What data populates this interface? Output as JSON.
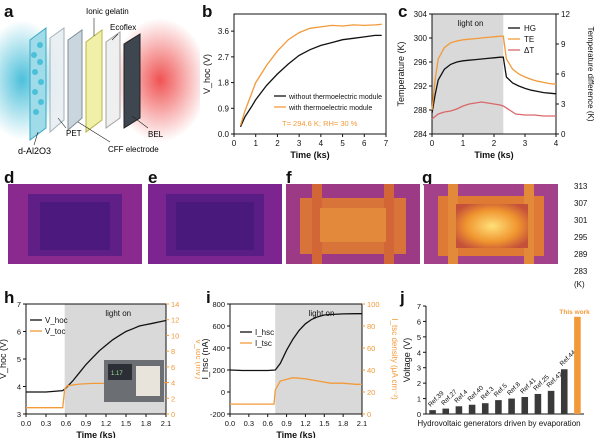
{
  "panel_letters": {
    "a": "a",
    "b": "b",
    "c": "c",
    "d": "d",
    "e": "e",
    "f": "f",
    "g": "g",
    "h": "h",
    "i": "i",
    "j": "j"
  },
  "schematic": {
    "labels": [
      "Ionic gelatin",
      "Ecoflex",
      "BEL",
      "CFF electrode",
      "PET",
      "d-Al2O3"
    ],
    "colors": {
      "hot": "#ef4a4a",
      "cold": "#39b9d6"
    }
  },
  "thermal": {
    "colorbar_ticks": [
      "313",
      "307",
      "301",
      "295",
      "289",
      "283"
    ],
    "colorbar_unit": "(K)"
  },
  "colors": {
    "black": "#111111",
    "orange": "#f29a3a",
    "red": "#d9686a",
    "shade": "#d9d9d9"
  },
  "inset_photo": {
    "texts": [
      "1.17"
    ]
  },
  "chart_data": [
    {
      "id": "b",
      "type": "line",
      "xlabel": "Time (ks)",
      "ylabel": "V_hoc (V)",
      "xlim": [
        0,
        7
      ],
      "ylim": [
        0,
        4.2
      ],
      "xticks": [
        "0",
        "1",
        "2",
        "3",
        "4",
        "5",
        "6",
        "7"
      ],
      "yticks": [
        "0.0",
        "0.9",
        "1.8",
        "2.7",
        "3.6"
      ],
      "annotation": "T= 294.6 K; RH= 30 %",
      "series": [
        {
          "name": "without thermoelectric module",
          "color": "#111111",
          "x": [
            0.3,
            0.5,
            0.8,
            1.0,
            1.5,
            2.0,
            2.5,
            3.0,
            3.5,
            4.0,
            4.5,
            5.0,
            5.5,
            6.0,
            6.5,
            6.8
          ],
          "y": [
            0.25,
            0.6,
            0.95,
            1.2,
            1.7,
            2.1,
            2.45,
            2.75,
            2.95,
            3.1,
            3.2,
            3.3,
            3.35,
            3.4,
            3.45,
            3.45
          ]
        },
        {
          "name": "with thermoelectric module",
          "color": "#f29a3a",
          "x": [
            0.3,
            0.5,
            0.8,
            1.0,
            1.5,
            2.0,
            2.5,
            3.0,
            3.5,
            4.0,
            4.5,
            5.0,
            5.5,
            6.0,
            6.5,
            6.8
          ],
          "y": [
            0.3,
            0.8,
            1.4,
            1.8,
            2.4,
            2.9,
            3.3,
            3.55,
            3.7,
            3.75,
            3.8,
            3.78,
            3.82,
            3.8,
            3.82,
            3.84
          ]
        }
      ]
    },
    {
      "id": "c",
      "type": "line",
      "xlabel": "Time (ks)",
      "ylabel": "Temperature (K)",
      "ylabel_right": "Temperature difference (K)",
      "xlim": [
        0,
        4
      ],
      "ylim": [
        284,
        304
      ],
      "ylim_right": [
        0,
        12
      ],
      "xticks": [
        "0",
        "1",
        "2",
        "3",
        "4"
      ],
      "yticks": [
        "284",
        "288",
        "292",
        "296",
        "300",
        "304"
      ],
      "yticks_right": [
        "0",
        "3",
        "6",
        "9",
        "12"
      ],
      "shade": [
        0,
        2.3
      ],
      "shade_label": "light on",
      "series": [
        {
          "name": "HG",
          "color": "#111111",
          "axis": "left",
          "x": [
            0,
            0.1,
            0.2,
            0.4,
            0.6,
            0.8,
            1.0,
            1.2,
            1.4,
            1.6,
            1.8,
            2.0,
            2.2,
            2.3,
            2.4,
            2.6,
            2.8,
            3.0,
            3.2,
            3.4,
            3.6,
            3.8,
            4.0
          ],
          "y": [
            287.5,
            290.5,
            293.0,
            294.8,
            295.6,
            296.0,
            296.2,
            296.3,
            296.4,
            296.5,
            296.6,
            296.7,
            296.8,
            296.8,
            293.5,
            292.5,
            292.0,
            291.6,
            291.3,
            291.1,
            290.9,
            290.8,
            290.7
          ]
        },
        {
          "name": "TE",
          "color": "#f29a3a",
          "axis": "left",
          "x": [
            0,
            0.1,
            0.2,
            0.4,
            0.6,
            0.8,
            1.0,
            1.2,
            1.4,
            1.6,
            1.8,
            2.0,
            2.2,
            2.3,
            2.4,
            2.6,
            2.8,
            3.0,
            3.2,
            3.4,
            3.6,
            3.8,
            4.0
          ],
          "y": [
            288.0,
            293.0,
            296.5,
            298.4,
            299.2,
            299.5,
            299.7,
            299.8,
            299.9,
            300.0,
            300.1,
            300.2,
            300.3,
            300.3,
            296.5,
            294.8,
            294.0,
            293.5,
            293.1,
            292.8,
            292.6,
            292.4,
            292.3
          ]
        },
        {
          "name": "ΔT",
          "color": "#d9686a",
          "axis": "right",
          "x": [
            0,
            0.2,
            0.4,
            0.6,
            0.8,
            1.0,
            1.2,
            1.4,
            1.6,
            1.8,
            2.0,
            2.2,
            2.3,
            2.5,
            2.7,
            3.0,
            3.3,
            3.6,
            4.0
          ],
          "y": [
            1.5,
            2.0,
            2.2,
            2.3,
            2.5,
            2.8,
            3.0,
            3.1,
            3.2,
            3.1,
            3.0,
            2.9,
            2.8,
            2.4,
            2.0,
            1.9,
            1.9,
            1.8,
            1.8
          ]
        }
      ]
    },
    {
      "id": "h",
      "type": "line",
      "xlabel": "Time (ks)",
      "ylabel": "V_hoc (V)",
      "ylabel_right": "V_toc (mV)",
      "xlim": [
        0,
        2.1
      ],
      "ylim": [
        3,
        7
      ],
      "ylim_right": [
        0,
        14
      ],
      "xticks": [
        "0.0",
        "0.3",
        "0.6",
        "0.9",
        "1.2",
        "1.5",
        "1.8",
        "2.1"
      ],
      "yticks": [
        "3",
        "4",
        "5",
        "6",
        "7"
      ],
      "yticks_right": [
        "0",
        "2",
        "4",
        "6",
        "8",
        "10",
        "12",
        "14"
      ],
      "shade": [
        0.58,
        2.1
      ],
      "shade_label": "light on",
      "series": [
        {
          "name": "V_hoc",
          "color": "#111111",
          "axis": "left",
          "x": [
            0,
            0.3,
            0.55,
            0.6,
            0.7,
            0.8,
            0.9,
            1.0,
            1.1,
            1.2,
            1.3,
            1.4,
            1.5,
            1.6,
            1.7,
            1.8,
            1.9,
            2.0,
            2.1
          ],
          "y": [
            3.8,
            3.8,
            3.85,
            3.95,
            4.2,
            4.5,
            4.8,
            5.05,
            5.3,
            5.5,
            5.7,
            5.85,
            6.0,
            6.1,
            6.2,
            6.25,
            6.3,
            6.35,
            6.4
          ]
        },
        {
          "name": "V_toc",
          "color": "#f29a3a",
          "axis": "right",
          "x": [
            0,
            0.3,
            0.55,
            0.58,
            0.62,
            0.8,
            1.0,
            1.2,
            1.4,
            1.6,
            1.8,
            2.0,
            2.1
          ],
          "y": [
            0.8,
            0.8,
            0.8,
            3.2,
            3.6,
            3.8,
            3.9,
            3.9,
            3.95,
            4.0,
            4.0,
            4.0,
            4.0
          ]
        }
      ]
    },
    {
      "id": "i",
      "type": "line",
      "xlabel": "Time (ks)",
      "ylabel": "I_hsc (nA)",
      "ylabel_right": "I_tsc density (μA cm⁻²)",
      "xlim": [
        0,
        2.1
      ],
      "ylim": [
        -200,
        800
      ],
      "ylim_right": [
        0,
        100
      ],
      "xticks": [
        "0.0",
        "0.3",
        "0.6",
        "0.9",
        "1.2",
        "1.5",
        "1.8",
        "2.1"
      ],
      "yticks": [
        "-200",
        "0",
        "200",
        "400",
        "600",
        "800"
      ],
      "yticks_right": [
        "0",
        "20",
        "40",
        "60",
        "80",
        "100"
      ],
      "shade": [
        0.72,
        2.1
      ],
      "shade_label": "light on",
      "series": [
        {
          "name": "I_hsc",
          "color": "#111111",
          "axis": "left",
          "x": [
            0,
            0.2,
            0.4,
            0.6,
            0.72,
            0.8,
            0.9,
            1.0,
            1.1,
            1.2,
            1.3,
            1.4,
            1.5,
            1.6,
            1.8,
            2.0,
            2.1
          ],
          "y": [
            200,
            195,
            195,
            195,
            200,
            260,
            380,
            480,
            560,
            620,
            660,
            685,
            700,
            705,
            710,
            712,
            712
          ]
        },
        {
          "name": "I_tsc",
          "color": "#f29a3a",
          "axis": "right",
          "x": [
            0,
            0.2,
            0.4,
            0.6,
            0.7,
            0.72,
            0.8,
            1.0,
            1.2,
            1.4,
            1.6,
            1.8,
            2.0,
            2.1
          ],
          "y": [
            9,
            9,
            9,
            9,
            9,
            22,
            30,
            33,
            32,
            30,
            28,
            28,
            27,
            27
          ]
        }
      ]
    },
    {
      "id": "j",
      "type": "bar",
      "xlabel": "Hydrovoltaic generators driven by evaporation",
      "ylabel": "Voltage (V)",
      "ylim": [
        0,
        7
      ],
      "yticks": [
        "0",
        "1",
        "2",
        "3",
        "4",
        "5",
        "6",
        "7"
      ],
      "categories": [
        "Ref.39",
        "Ref.27",
        "Ref.4",
        "Ref.40",
        "Ref.3",
        "Ref.5",
        "Ref.8",
        "Ref.41",
        "Ref.25",
        "Ref.42",
        "Ref.44",
        "This work"
      ],
      "values": [
        0.25,
        0.35,
        0.5,
        0.6,
        0.7,
        0.9,
        1.0,
        1.1,
        1.3,
        1.5,
        2.9,
        6.3
      ],
      "highlight": "This work"
    }
  ]
}
